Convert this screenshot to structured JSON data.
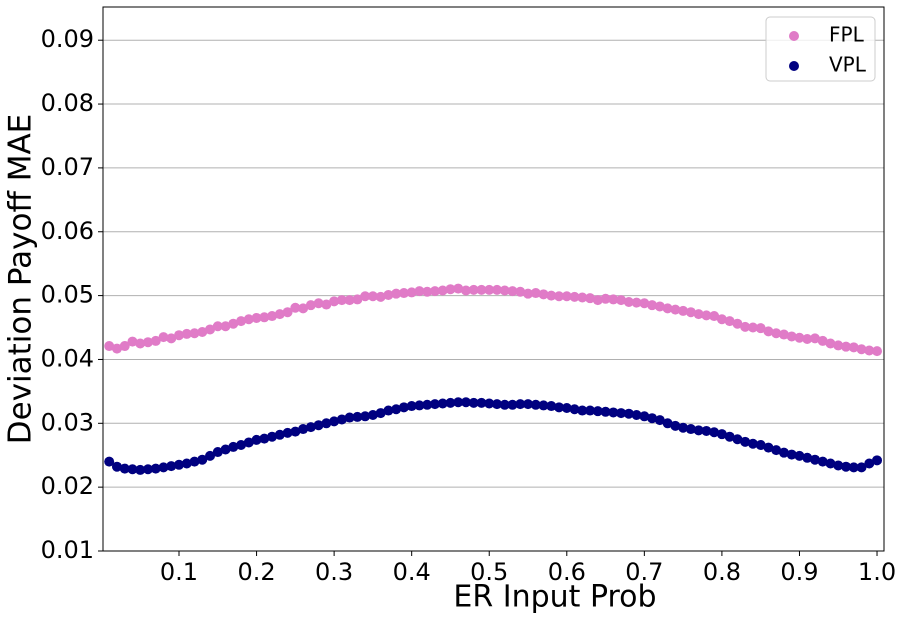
{
  "chart_data": {
    "type": "scatter",
    "xlabel": "ER Input Prob",
    "ylabel": "Deviation Payoff MAE",
    "x": [
      0.01,
      0.02,
      0.03,
      0.04,
      0.05,
      0.06,
      0.07,
      0.08,
      0.09,
      0.1,
      0.11,
      0.12,
      0.13,
      0.14,
      0.15,
      0.16,
      0.17,
      0.18,
      0.19,
      0.2,
      0.21,
      0.22,
      0.23,
      0.24,
      0.25,
      0.26,
      0.27,
      0.28,
      0.29,
      0.3,
      0.31,
      0.32,
      0.33,
      0.34,
      0.35,
      0.36,
      0.37,
      0.38,
      0.39,
      0.4,
      0.41,
      0.42,
      0.43,
      0.44,
      0.45,
      0.46,
      0.47,
      0.48,
      0.49,
      0.5,
      0.51,
      0.52,
      0.53,
      0.54,
      0.55,
      0.56,
      0.57,
      0.58,
      0.59,
      0.6,
      0.61,
      0.62,
      0.63,
      0.64,
      0.65,
      0.66,
      0.67,
      0.68,
      0.69,
      0.7,
      0.71,
      0.72,
      0.73,
      0.74,
      0.75,
      0.76,
      0.77,
      0.78,
      0.79,
      0.8,
      0.81,
      0.82,
      0.83,
      0.84,
      0.85,
      0.86,
      0.87,
      0.88,
      0.89,
      0.9,
      0.91,
      0.92,
      0.93,
      0.94,
      0.95,
      0.96,
      0.97,
      0.98,
      0.99,
      1.0
    ],
    "series": [
      {
        "name": "FPL",
        "color": "#e07bc7",
        "values": [
          0.0421,
          0.0417,
          0.0421,
          0.0428,
          0.0425,
          0.0427,
          0.0429,
          0.0435,
          0.0433,
          0.0438,
          0.044,
          0.0441,
          0.0443,
          0.0447,
          0.0452,
          0.0452,
          0.0456,
          0.046,
          0.0463,
          0.0465,
          0.0466,
          0.0468,
          0.0471,
          0.0474,
          0.0481,
          0.048,
          0.0485,
          0.0488,
          0.0486,
          0.0491,
          0.0493,
          0.0493,
          0.0494,
          0.0499,
          0.0499,
          0.0498,
          0.0501,
          0.0503,
          0.0504,
          0.0505,
          0.0507,
          0.0506,
          0.0507,
          0.0508,
          0.051,
          0.0511,
          0.0508,
          0.0509,
          0.0509,
          0.0509,
          0.0509,
          0.0508,
          0.0507,
          0.0506,
          0.0503,
          0.0504,
          0.0502,
          0.05,
          0.0499,
          0.0499,
          0.0498,
          0.0497,
          0.0496,
          0.0493,
          0.0495,
          0.0494,
          0.0493,
          0.049,
          0.0489,
          0.0488,
          0.0485,
          0.0483,
          0.048,
          0.0478,
          0.0476,
          0.0474,
          0.0471,
          0.0469,
          0.0468,
          0.0463,
          0.046,
          0.0456,
          0.0451,
          0.045,
          0.0449,
          0.0444,
          0.0441,
          0.0439,
          0.0436,
          0.0434,
          0.0432,
          0.0433,
          0.0429,
          0.0425,
          0.0422,
          0.042,
          0.0419,
          0.0416,
          0.0414,
          0.0413
        ]
      },
      {
        "name": "VPL",
        "color": "#000080",
        "values": [
          0.024,
          0.0232,
          0.0229,
          0.0228,
          0.0227,
          0.0228,
          0.0229,
          0.0231,
          0.0233,
          0.0235,
          0.0237,
          0.024,
          0.0243,
          0.0249,
          0.0255,
          0.0259,
          0.0263,
          0.0266,
          0.027,
          0.0274,
          0.0276,
          0.0279,
          0.0282,
          0.0285,
          0.0287,
          0.0291,
          0.0294,
          0.0297,
          0.03,
          0.0303,
          0.0306,
          0.0309,
          0.031,
          0.0311,
          0.0313,
          0.0316,
          0.032,
          0.0322,
          0.0325,
          0.0327,
          0.0328,
          0.0329,
          0.033,
          0.0331,
          0.0332,
          0.0333,
          0.0333,
          0.0332,
          0.0332,
          0.0331,
          0.033,
          0.0329,
          0.0329,
          0.033,
          0.033,
          0.0329,
          0.0328,
          0.0327,
          0.0325,
          0.0324,
          0.0322,
          0.032,
          0.032,
          0.0319,
          0.0318,
          0.0317,
          0.0316,
          0.0315,
          0.0313,
          0.0311,
          0.0308,
          0.0305,
          0.03,
          0.0296,
          0.0293,
          0.0291,
          0.0289,
          0.0288,
          0.0286,
          0.0283,
          0.0279,
          0.0275,
          0.0271,
          0.0268,
          0.0266,
          0.0262,
          0.0258,
          0.0254,
          0.0251,
          0.0249,
          0.0246,
          0.0243,
          0.024,
          0.0237,
          0.0234,
          0.0232,
          0.0231,
          0.0231,
          0.0237,
          0.0242
        ]
      }
    ],
    "xlim": [
      0.002,
      1.009
    ],
    "ylim": [
      0.01,
      0.0952
    ],
    "xticks": [
      0.1,
      0.2,
      0.3,
      0.4,
      0.5,
      0.6,
      0.7,
      0.8,
      0.9,
      {
        "value": 1,
        "label": "1.0"
      }
    ],
    "yticks": [
      0.01,
      0.02,
      0.03,
      0.04,
      0.05,
      0.06,
      0.07,
      0.08,
      0.09
    ],
    "grid": "y",
    "legend": "upper right"
  }
}
